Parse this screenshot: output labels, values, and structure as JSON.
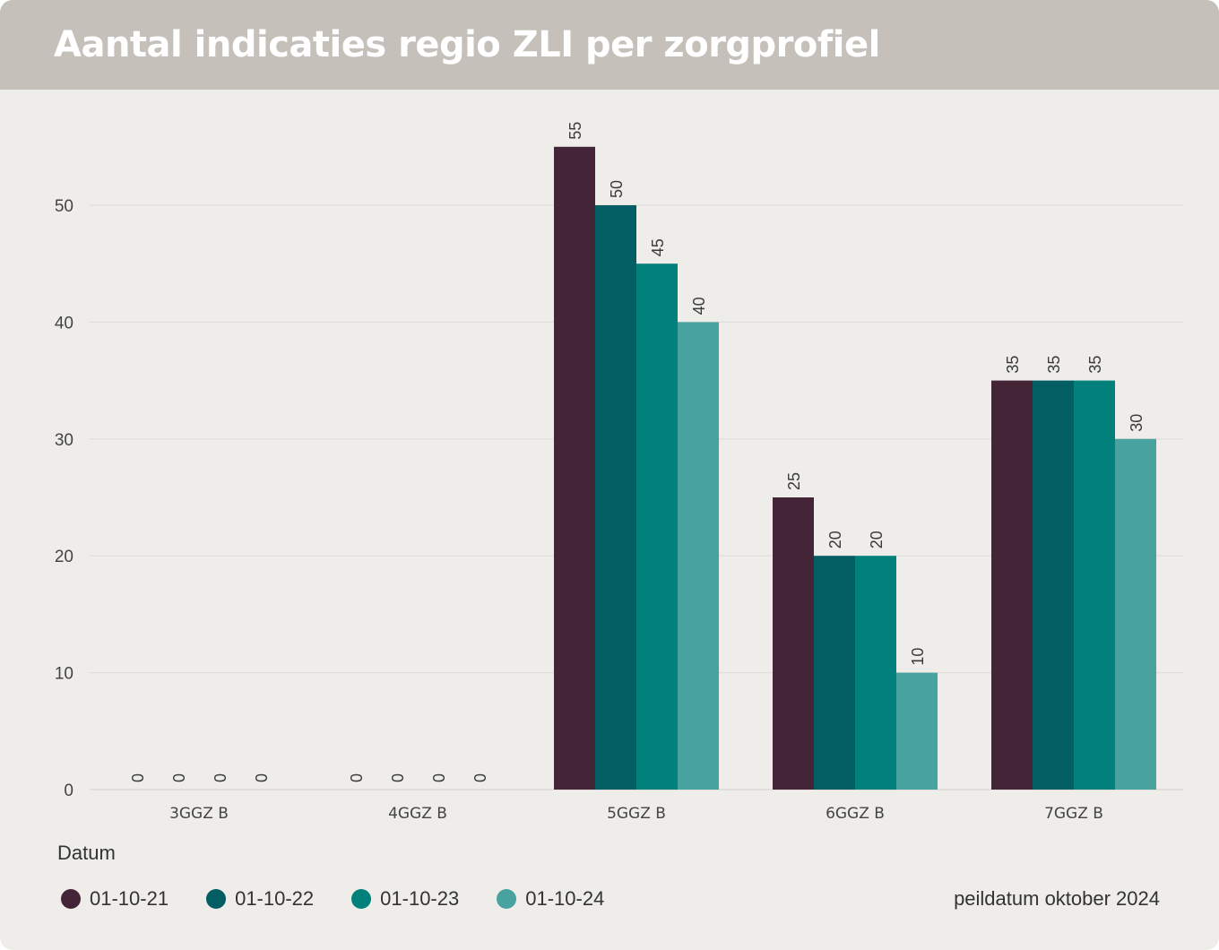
{
  "header": {
    "title": "Aantal indicaties regio ZLI per zorgprofiel"
  },
  "legend": {
    "title": "Datum"
  },
  "footnote": "peildatum oktober 2024",
  "chart_data": {
    "type": "bar",
    "title": "Aantal indicaties regio ZLI per zorgprofiel",
    "xlabel": "",
    "ylabel": "",
    "categories": [
      "3GGZ B",
      "4GGZ B",
      "5GGZ B",
      "6GGZ B",
      "7GGZ B"
    ],
    "series": [
      {
        "name": "01-10-21",
        "color": "#442537",
        "values": [
          0,
          0,
          55,
          25,
          35
        ]
      },
      {
        "name": "01-10-22",
        "color": "#035e63",
        "values": [
          0,
          0,
          50,
          20,
          35
        ]
      },
      {
        "name": "01-10-23",
        "color": "#01807c",
        "values": [
          0,
          0,
          45,
          20,
          35
        ]
      },
      {
        "name": "01-10-24",
        "color": "#47a2a0",
        "values": [
          0,
          0,
          40,
          10,
          30
        ]
      }
    ],
    "ylim": [
      0,
      55
    ],
    "yticks": [
      0,
      10,
      20,
      30,
      40,
      50
    ],
    "grid": true,
    "legend_position": "bottom-left"
  }
}
